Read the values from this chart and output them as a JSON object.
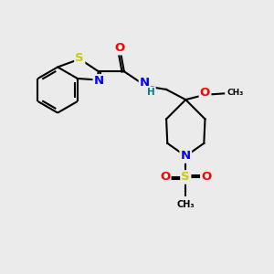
{
  "bg_color": "#ebebeb",
  "fig_size": [
    3.0,
    3.0
  ],
  "dpi": 100,
  "atom_colors": {
    "S": "#cccc00",
    "N": "#0000ff",
    "O": "#ff0000",
    "H": "#008080",
    "C": "#000000",
    "default": "#000000"
  },
  "bond_color": "#000000",
  "bond_width": 1.5,
  "xlim": [
    0,
    10
  ],
  "ylim": [
    0,
    10
  ]
}
